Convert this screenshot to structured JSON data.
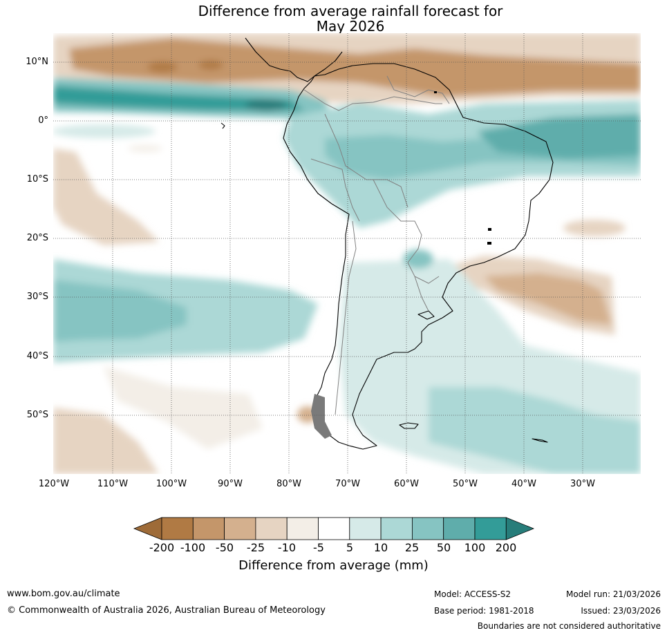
{
  "title": {
    "line1": "Difference from average rainfall forecast for",
    "line2": "May 2026"
  },
  "map": {
    "latitude_labels": [
      "10°N",
      "0°",
      "10°S",
      "20°S",
      "30°S",
      "40°S",
      "50°S"
    ],
    "longitude_labels": [
      "120°W",
      "110°W",
      "100°W",
      "90°W",
      "80°W",
      "70°W",
      "60°W",
      "50°W",
      "40°W",
      "30°W"
    ]
  },
  "legend": {
    "title": "Difference from average (mm)",
    "ticks": [
      "-200",
      "-100",
      "-50",
      "-25",
      "-10",
      "-5",
      "5",
      "10",
      "25",
      "50",
      "100",
      "200"
    ],
    "colors": [
      "#9e6b38",
      "#b07a44",
      "#c4966a",
      "#d4b08e",
      "#e6d4c2",
      "#f3eee7",
      "#ffffff",
      "#d6eae8",
      "#acd8d6",
      "#86c4c2",
      "#5fadab",
      "#339c98",
      "#277d7a"
    ]
  },
  "footer": {
    "website": "www.bom.gov.au/climate",
    "copyright": "© Commonwealth of Australia 2026, Australian Bureau of Meteorology",
    "model": "Model: ACCESS-S2",
    "base_period": "Base period: 1981-2018",
    "model_run": "Model run: 21/03/2026",
    "issued": "Issued: 23/03/2026",
    "disclaimer": "Boundaries are not considered authoritative"
  }
}
